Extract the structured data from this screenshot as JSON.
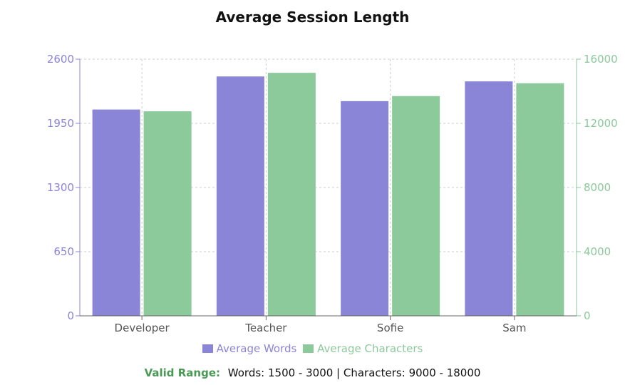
{
  "chart_data": {
    "type": "bar",
    "title": "Average Session Length",
    "categories": [
      "Developer",
      "Teacher",
      "Sofie",
      "Sam"
    ],
    "series": [
      {
        "name": "Average Words",
        "axis": "left",
        "color": "#8b85d8",
        "values": [
          2090,
          2425,
          2175,
          2375
        ]
      },
      {
        "name": "Average Characters",
        "axis": "right",
        "color": "#8cc99b",
        "values": [
          12750,
          15150,
          13700,
          14500
        ]
      }
    ],
    "y_left": {
      "ticks": [
        "0",
        "650",
        "1300",
        "1950",
        "2600"
      ],
      "range": [
        0,
        2600
      ],
      "color": "#8b85d8"
    },
    "y_right": {
      "ticks": [
        "0",
        "4000",
        "8000",
        "12000",
        "16000"
      ],
      "range": [
        0,
        16000
      ],
      "color": "#8cc99b"
    },
    "grid": true,
    "legend_position": "bottom"
  },
  "footer": {
    "label": "Valid Range:",
    "text": "Words: 1500 - 3000 | Characters: 9000 - 18000"
  }
}
